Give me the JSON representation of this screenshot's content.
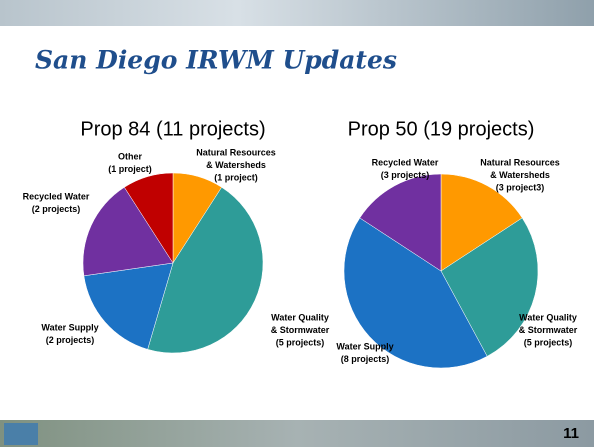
{
  "slide": {
    "title": "San Diego IRWM Updates",
    "page": "11"
  },
  "chart_data": [
    {
      "type": "pie",
      "title": "Prop 84 (11 projects)",
      "categories": [
        [
          "Natural Resources",
          "& Watersheds",
          "(1 project)"
        ],
        [
          "Water Quality",
          "& Stormwater",
          "(5 projects)"
        ],
        [
          "Water Supply",
          "(2 projects)"
        ],
        [
          "Recycled Water",
          "(2 projects)"
        ],
        [
          "Other",
          "(1 project)"
        ]
      ],
      "values": [
        1,
        5,
        2,
        2,
        1
      ],
      "colors": [
        "#ff9900",
        "#2e9c98",
        "#1c72c4",
        "#7030a0",
        "#c00000"
      ]
    },
    {
      "type": "pie",
      "title": "Prop 50 (19 projects)",
      "categories": [
        [
          "Natural Resources",
          "& Watersheds",
          "(3 project3)"
        ],
        [
          "Water Quality",
          "& Stormwater",
          "(5 projects)"
        ],
        [
          "Water Supply",
          "(8 projects)"
        ],
        [
          "Recycled Water",
          "(3 projects)"
        ]
      ],
      "values": [
        3,
        5,
        8,
        3
      ],
      "colors": [
        "#ff9900",
        "#2e9c98",
        "#1c72c4",
        "#7030a0"
      ]
    }
  ]
}
